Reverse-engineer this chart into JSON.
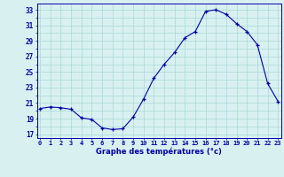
{
  "hours": [
    0,
    1,
    2,
    3,
    4,
    5,
    6,
    7,
    8,
    9,
    10,
    11,
    12,
    13,
    14,
    15,
    16,
    17,
    18,
    19,
    20,
    21,
    22,
    23
  ],
  "temperatures": [
    20.3,
    20.5,
    20.4,
    20.2,
    19.1,
    18.9,
    17.8,
    17.6,
    17.7,
    19.2,
    21.5,
    24.2,
    26.0,
    27.5,
    29.4,
    30.2,
    32.8,
    33.0,
    32.4,
    31.2,
    30.2,
    28.5,
    23.5,
    21.2
  ],
  "line_color": "#0000AA",
  "marker": "+",
  "marker_color": "#0000AA",
  "bg_color": "#d8f0f0",
  "grid_color": "#a8d8d8",
  "axis_label_color": "#0000AA",
  "tick_label_color": "#0000AA",
  "xlabel": "Graphe des températures (°c)",
  "ylim_min": 16.5,
  "ylim_max": 33.8,
  "yticks": [
    17,
    19,
    21,
    23,
    25,
    27,
    29,
    31,
    33
  ]
}
